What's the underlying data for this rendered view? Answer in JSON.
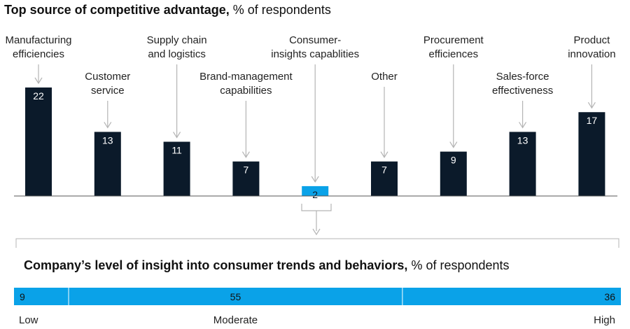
{
  "colors": {
    "navy": "#0b1a2a",
    "cyan": "#0aa2e8",
    "arrow": "#b4b4b4",
    "axis": "#555555"
  },
  "chart_data": [
    {
      "type": "bar",
      "title_bold": "Top source of competitive advantage,",
      "title_rest": " % of respondents",
      "categories": [
        [
          "Manufacturing",
          "efficiencies"
        ],
        [
          "Customer",
          "service"
        ],
        [
          "Supply chain",
          "and logistics"
        ],
        [
          "Brand-management",
          "capabilities"
        ],
        [
          "Consumer-",
          "insights capablities"
        ],
        [
          "Other"
        ],
        [
          "Procurement",
          "efficiences"
        ],
        [
          "Sales-force",
          "effectiveness"
        ],
        [
          "Product",
          "innovation"
        ]
      ],
      "values": [
        22,
        13,
        11,
        7,
        2,
        7,
        9,
        13,
        17
      ],
      "highlight_index": 4,
      "ylim": [
        0,
        25
      ]
    },
    {
      "type": "bar",
      "orientation": "horizontal-stacked",
      "title_bold": "Company’s level of insight into consumer trends and behaviors,",
      "title_rest": " % of respondents",
      "segments": [
        {
          "label": "Low",
          "value": 9
        },
        {
          "label": "Moderate",
          "value": 55
        },
        {
          "label": "High",
          "value": 36
        }
      ]
    }
  ]
}
